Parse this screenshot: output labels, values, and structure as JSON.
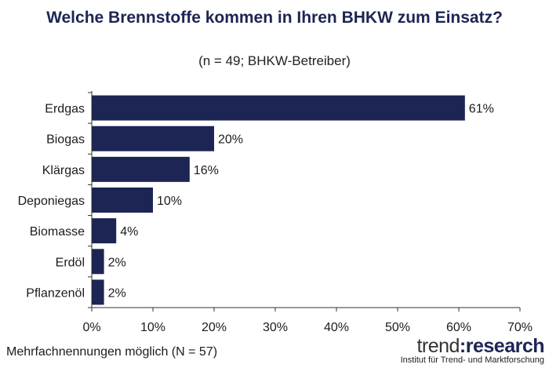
{
  "title": "Welche Brennstoffe kommen in Ihren BHKW zum Einsatz?",
  "subtitle": "(n = 49; BHKW-Betreiber)",
  "footnote": "Mehrfachnennungen möglich (N = 57)",
  "logo": {
    "part1": "trend",
    "separator": ":",
    "part2": "research",
    "tagline": "Institut für Trend- und Marktforschung"
  },
  "colors": {
    "bar": "#1c2554",
    "title": "#1c2554"
  },
  "chart_data": {
    "type": "bar",
    "orientation": "horizontal",
    "categories": [
      "Erdgas",
      "Biogas",
      "Klärgas",
      "Deponiegas",
      "Biomasse",
      "Erdöl",
      "Pflanzenöl"
    ],
    "values": [
      61,
      20,
      16,
      10,
      4,
      2,
      2
    ],
    "value_labels": [
      "61%",
      "20%",
      "16%",
      "10%",
      "4%",
      "2%",
      "2%"
    ],
    "xlim": [
      0,
      70
    ],
    "xticks": [
      0,
      10,
      20,
      30,
      40,
      50,
      60,
      70
    ],
    "xtick_labels": [
      "0%",
      "10%",
      "20%",
      "30%",
      "40%",
      "50%",
      "60%",
      "70%"
    ],
    "grid": false,
    "legend": "none"
  }
}
